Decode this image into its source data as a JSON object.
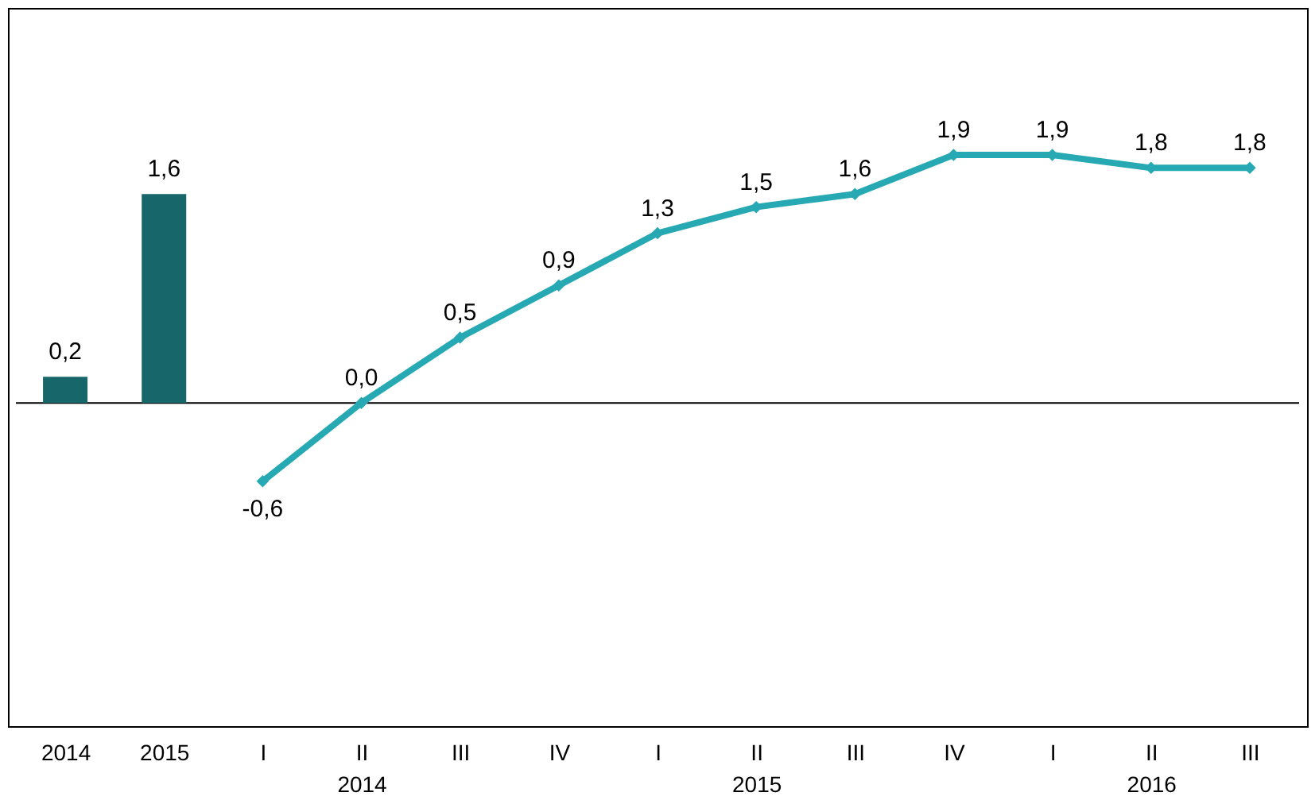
{
  "chart_data": {
    "type": "bar",
    "categories": [
      "2014",
      "2015",
      "I",
      "II\n2014",
      "III",
      "IV",
      "I",
      "II\n2015",
      "III",
      "IV",
      "I",
      "II\n2016",
      "III"
    ],
    "series": [
      {
        "color": "#17676a",
        "values": [
          0.2,
          1.6,
          null,
          null,
          null,
          null,
          null,
          null,
          null,
          null,
          null,
          null,
          null
        ],
        "value_labels": [
          "0,2",
          "1,6",
          null,
          null,
          null,
          null,
          null,
          null,
          null,
          null,
          null,
          null,
          null
        ]
      },
      {
        "type": "line",
        "color": "#26a9b3",
        "marker": "diamond",
        "line_style": "solid",
        "values": [
          null,
          null,
          -0.6,
          0.0,
          0.5,
          0.9,
          1.3,
          1.5,
          1.6,
          1.9,
          1.9,
          1.8,
          1.8
        ],
        "value_labels": [
          null,
          null,
          "-0,6",
          "0,0",
          "0,5",
          "0,9",
          "1,3",
          "1,5",
          "1,6",
          "1,9",
          "1,9",
          "1,8",
          "1,8"
        ]
      }
    ],
    "grid": false
  }
}
